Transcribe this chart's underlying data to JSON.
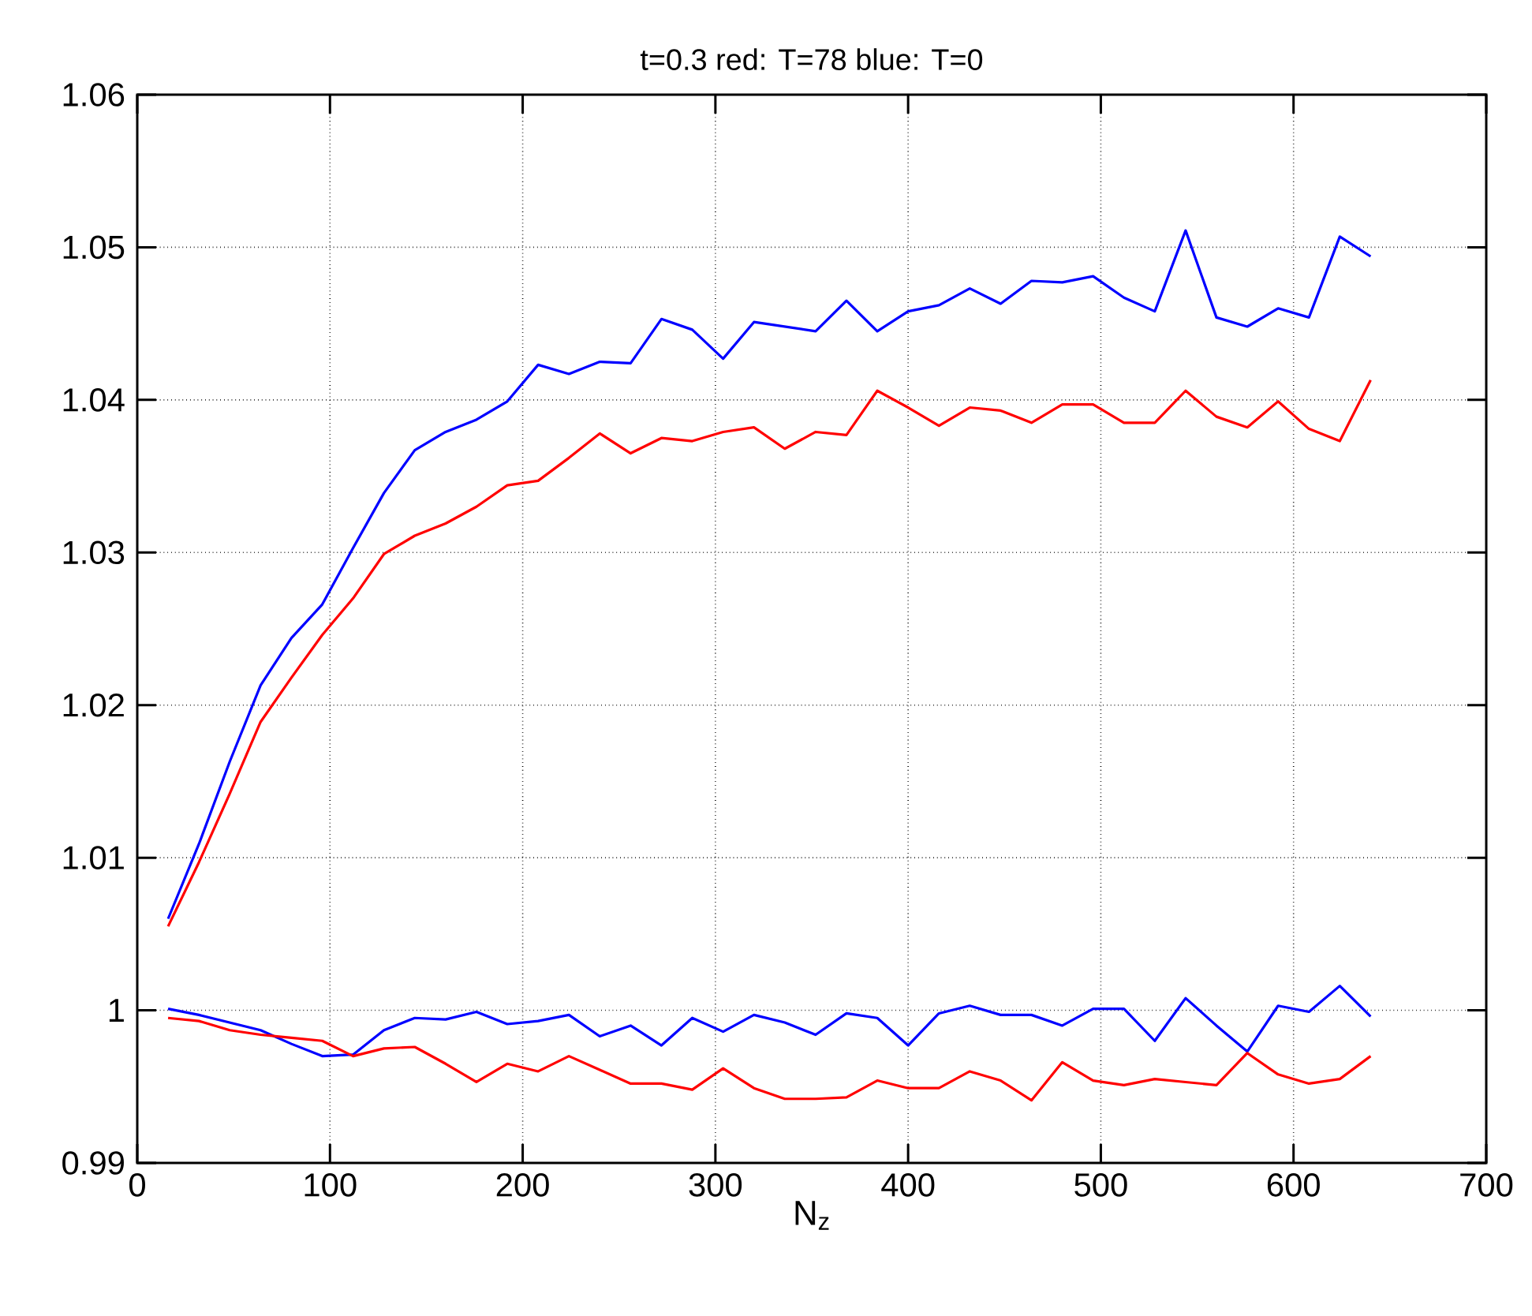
{
  "chart_data": {
    "type": "line",
    "title": "t=0.3 red: T=78   blue: T=0",
    "xlabel": "N$_{z}$",
    "x": [
      16,
      32,
      48,
      64,
      80,
      96,
      112,
      128,
      144,
      160,
      176,
      192,
      208,
      224,
      240,
      256,
      272,
      288,
      304,
      320,
      336,
      352,
      368,
      384,
      400,
      416,
      432,
      448,
      464,
      480,
      496,
      512,
      528,
      544,
      560,
      576,
      592,
      608,
      624,
      640
    ],
    "series": [
      {
        "color": "#0000ff",
        "values": [
          1.006,
          1.0109,
          1.0163,
          1.0213,
          1.0244,
          1.0266,
          1.0303,
          1.0339,
          1.0367,
          1.0379,
          1.0387,
          1.0399,
          1.0423,
          1.0417,
          1.0425,
          1.0424,
          1.0453,
          1.0446,
          1.0427,
          1.0451,
          1.0448,
          1.0445,
          1.0465,
          1.0445,
          1.0458,
          1.0462,
          1.0473,
          1.0463,
          1.0478,
          1.0477,
          1.0481,
          1.0467,
          1.0458,
          1.0511,
          1.0454,
          1.0448,
          1.046,
          1.0454,
          1.0507,
          1.0494
        ]
      },
      {
        "color": "#ff0000",
        "values": [
          1.0055,
          1.0097,
          1.0142,
          1.0189,
          1.0218,
          1.0246,
          1.027,
          1.0299,
          1.0311,
          1.0319,
          1.033,
          1.0344,
          1.0347,
          1.0362,
          1.0378,
          1.0365,
          1.0375,
          1.0373,
          1.0379,
          1.0382,
          1.0368,
          1.0379,
          1.0377,
          1.0406,
          1.0395,
          1.0383,
          1.0395,
          1.0393,
          1.0385,
          1.0397,
          1.0397,
          1.0385,
          1.0385,
          1.0406,
          1.0389,
          1.0382,
          1.0399,
          1.0381,
          1.0373,
          1.0413
        ]
      },
      {
        "color": "#0000ff",
        "values": [
          1.0001,
          0.9997,
          0.9992,
          0.9987,
          0.9978,
          0.997,
          0.9971,
          0.9987,
          0.9995,
          0.9994,
          0.9999,
          0.9991,
          0.9993,
          0.9997,
          0.9983,
          0.999,
          0.9977,
          0.9995,
          0.9986,
          0.9997,
          0.9992,
          0.9984,
          0.9998,
          0.9995,
          0.9977,
          0.9998,
          1.0003,
          0.9997,
          0.9997,
          0.999,
          1.0001,
          1.0001,
          0.998,
          1.0008,
          0.999,
          0.9973,
          1.0003,
          0.9999,
          1.0016,
          0.9996
        ]
      },
      {
        "color": "#ff0000",
        "values": [
          0.9995,
          0.9993,
          0.9987,
          0.9984,
          0.9982,
          0.998,
          0.997,
          0.9975,
          0.9976,
          0.9965,
          0.9953,
          0.9965,
          0.996,
          0.997,
          0.9961,
          0.9952,
          0.9952,
          0.9948,
          0.9962,
          0.9949,
          0.9942,
          0.9942,
          0.9943,
          0.9954,
          0.9949,
          0.9949,
          0.996,
          0.9954,
          0.9941,
          0.9966,
          0.9954,
          0.9951,
          0.9955,
          0.9953,
          0.9951,
          0.9972,
          0.9958,
          0.9952,
          0.9955,
          0.997
        ]
      }
    ],
    "xlim": [
      0,
      700
    ],
    "xticks": [
      0,
      100,
      200,
      300,
      400,
      500,
      600,
      700
    ],
    "ylim": [
      0.99,
      1.06
    ],
    "yticks": [
      0.99,
      1,
      1.01,
      1.02,
      1.03,
      1.04,
      1.05,
      1.06
    ],
    "grid": true,
    "marker": "none",
    "line_style": "solid"
  }
}
